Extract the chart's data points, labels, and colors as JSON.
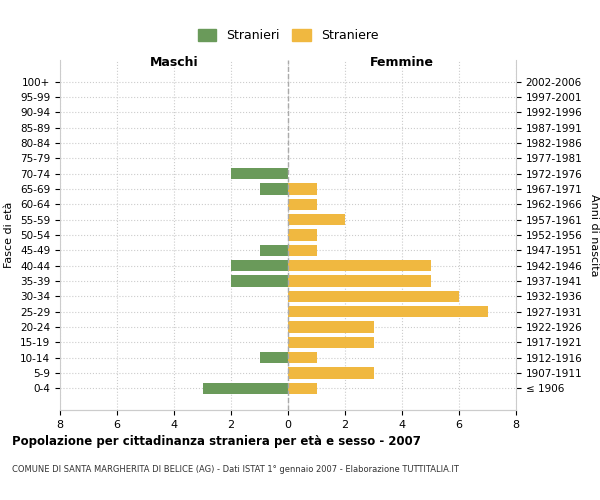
{
  "age_groups": [
    "100+",
    "95-99",
    "90-94",
    "85-89",
    "80-84",
    "75-79",
    "70-74",
    "65-69",
    "60-64",
    "55-59",
    "50-54",
    "45-49",
    "40-44",
    "35-39",
    "30-34",
    "25-29",
    "20-24",
    "15-19",
    "10-14",
    "5-9",
    "0-4"
  ],
  "birth_years": [
    "≤ 1906",
    "1907-1911",
    "1912-1916",
    "1917-1921",
    "1922-1926",
    "1927-1931",
    "1932-1936",
    "1937-1941",
    "1942-1946",
    "1947-1951",
    "1952-1956",
    "1957-1961",
    "1962-1966",
    "1967-1971",
    "1972-1976",
    "1977-1981",
    "1982-1986",
    "1987-1991",
    "1992-1996",
    "1997-2001",
    "2002-2006"
  ],
  "maschi": [
    0,
    0,
    0,
    0,
    0,
    0,
    2,
    1,
    0,
    0,
    0,
    1,
    2,
    2,
    0,
    0,
    0,
    0,
    1,
    0,
    3
  ],
  "femmine": [
    0,
    0,
    0,
    0,
    0,
    0,
    0,
    1,
    1,
    2,
    1,
    1,
    5,
    5,
    6,
    7,
    3,
    3,
    1,
    3,
    1
  ],
  "maschi_color": "#6a9a5a",
  "femmine_color": "#f0b840",
  "background_color": "#ffffff",
  "grid_color": "#cccccc",
  "title": "Popolazione per cittadinanza straniera per età e sesso - 2007",
  "subtitle": "COMUNE DI SANTA MARGHERITA DI BELICE (AG) - Dati ISTAT 1° gennaio 2007 - Elaborazione TUTTITALIA.IT",
  "xlabel_left": "Maschi",
  "xlabel_right": "Femmine",
  "ylabel_left": "Fasce di età",
  "ylabel_right": "Anni di nascita",
  "legend_maschi": "Stranieri",
  "legend_femmine": "Straniere",
  "xlim": 8,
  "bar_height": 0.75
}
